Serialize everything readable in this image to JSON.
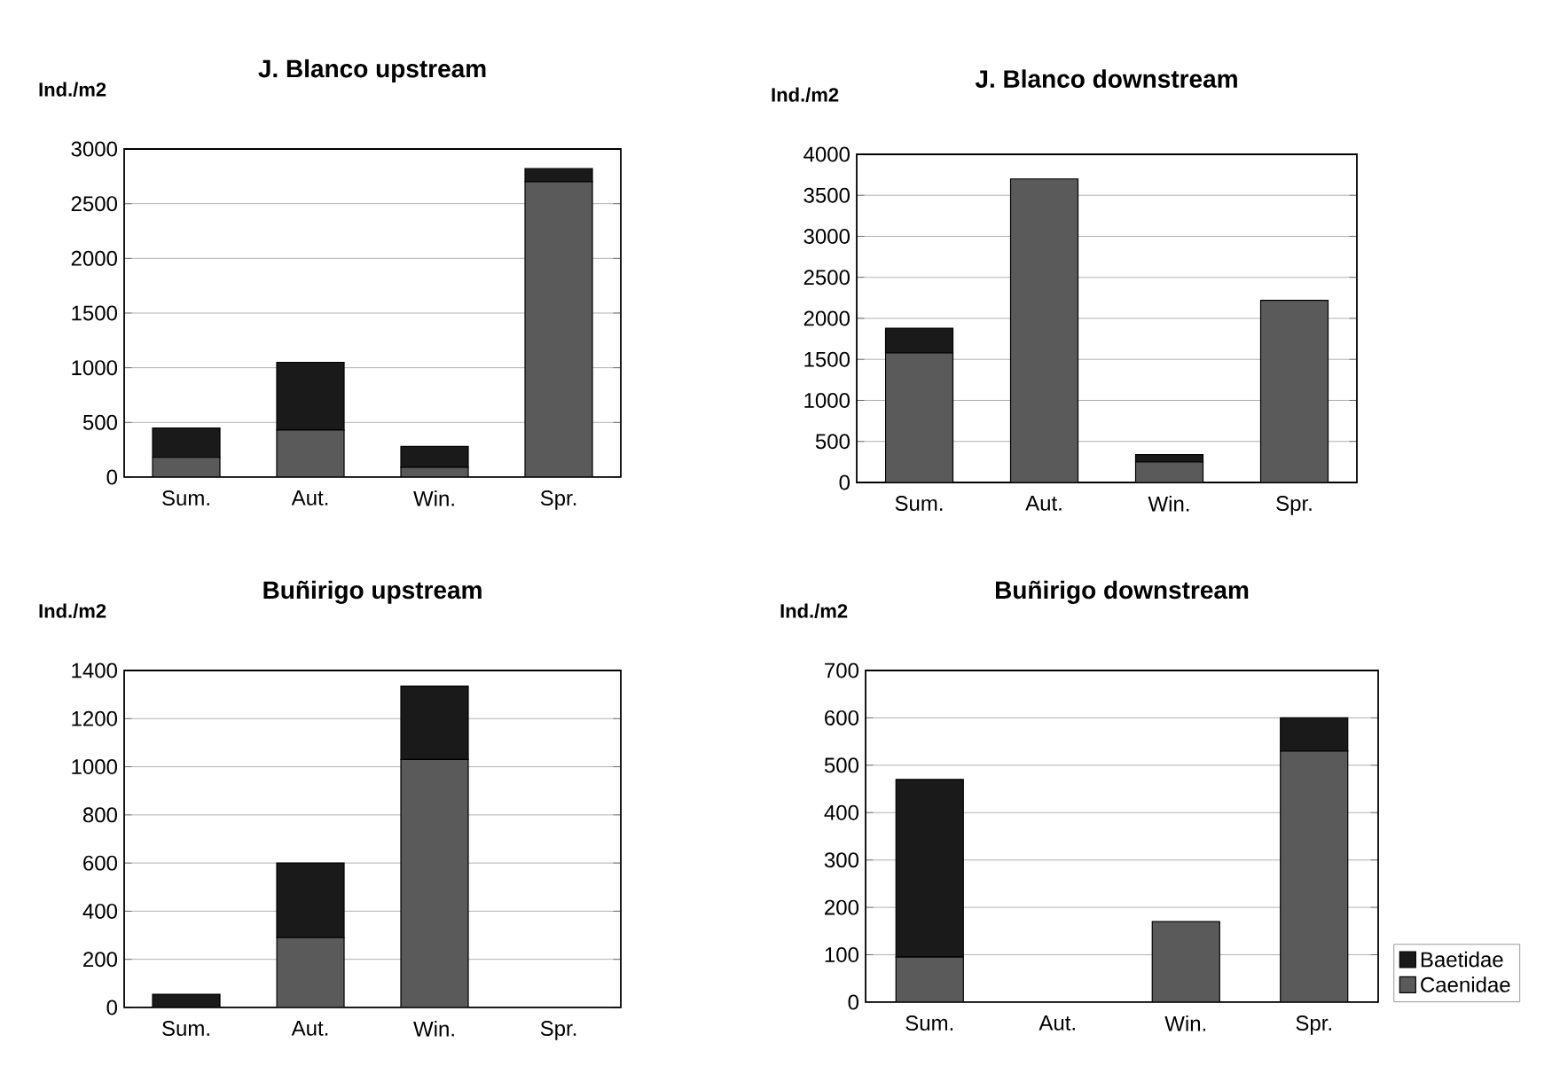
{
  "chart_data": [
    {
      "type": "bar",
      "stacked": true,
      "title": "J. Blanco upstream",
      "ylabel": "Ind./m2",
      "categories": [
        "Sum.",
        "Aut.",
        "Win.",
        "Spr."
      ],
      "ylim": [
        0,
        3000
      ],
      "yticks": [
        0,
        500,
        1000,
        1500,
        2000,
        2500,
        3000
      ],
      "grid": "y",
      "series": [
        {
          "color": "#5a5a5a",
          "values": [
            180,
            430,
            90,
            2700
          ]
        },
        {
          "color": "#1a1a1a",
          "values": [
            270,
            620,
            190,
            120
          ]
        }
      ]
    },
    {
      "type": "bar",
      "stacked": true,
      "title": "J. Blanco downstream",
      "ylabel": "Ind./m2",
      "categories": [
        "Sum.",
        "Aut.",
        "Win.",
        "Spr."
      ],
      "ylim": [
        0,
        4000
      ],
      "yticks": [
        0,
        500,
        1000,
        1500,
        2000,
        2500,
        3000,
        3500,
        4000
      ],
      "grid": "y",
      "series": [
        {
          "color": "#5a5a5a",
          "values": [
            1580,
            3700,
            250,
            2220
          ]
        },
        {
          "color": "#1a1a1a",
          "values": [
            300,
            0,
            90,
            0
          ]
        }
      ]
    },
    {
      "type": "bar",
      "stacked": true,
      "title": "Buñirigo upstream",
      "ylabel": "Ind./m2",
      "categories": [
        "Sum.",
        "Aut.",
        "Win.",
        "Spr."
      ],
      "ylim": [
        0,
        1400
      ],
      "yticks": [
        0,
        200,
        400,
        600,
        800,
        1000,
        1200,
        1400
      ],
      "grid": "y",
      "series": [
        {
          "color": "#5a5a5a",
          "values": [
            0,
            290,
            1030,
            0
          ]
        },
        {
          "color": "#1a1a1a",
          "values": [
            55,
            310,
            305,
            0
          ]
        }
      ]
    },
    {
      "type": "bar",
      "stacked": true,
      "title": "Buñirigo downstream",
      "ylabel": "Ind./m2",
      "categories": [
        "Sum.",
        "Aut.",
        "Win.",
        "Spr."
      ],
      "ylim": [
        0,
        700
      ],
      "yticks": [
        0,
        100,
        200,
        300,
        400,
        500,
        600,
        700
      ],
      "grid": "y",
      "legend": "bottom right",
      "series": [
        {
          "name": "Caenidae",
          "color": "#5a5a5a",
          "values": [
            95,
            0,
            170,
            530
          ]
        },
        {
          "name": "Baetidae",
          "color": "#1a1a1a",
          "values": [
            375,
            0,
            0,
            70
          ]
        }
      ]
    }
  ]
}
